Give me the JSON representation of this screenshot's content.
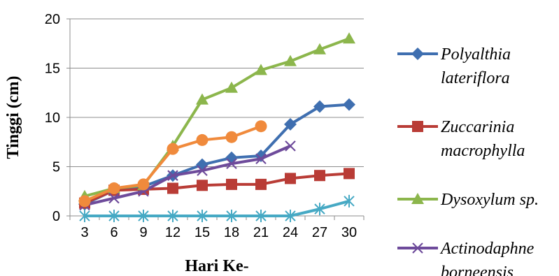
{
  "chart_data": {
    "type": "line",
    "title": "",
    "xlabel": "Hari Ke-",
    "ylabel": "Tinggi (cm)",
    "categories": [
      3,
      6,
      9,
      12,
      15,
      18,
      21,
      24,
      27,
      30
    ],
    "yticks": [
      0,
      5,
      10,
      15,
      20
    ],
    "ylim": [
      0,
      20
    ],
    "grid": "horizontal",
    "legend_position": "right",
    "series": [
      {
        "name_lines": [
          "Polyalthia",
          "lateriflora"
        ],
        "color": "#3f6fb0",
        "marker": "diamond",
        "values": [
          1.2,
          2.6,
          3.0,
          4.1,
          5.2,
          5.9,
          6.1,
          9.3,
          11.1,
          11.3
        ]
      },
      {
        "name_lines": [
          "Zuccarinia",
          "macrophylla"
        ],
        "color": "#b93c36",
        "marker": "square",
        "values": [
          1.3,
          2.6,
          2.7,
          2.8,
          3.1,
          3.2,
          3.2,
          3.8,
          4.1,
          4.3
        ]
      },
      {
        "name_lines": [
          "Dysoxylum sp."
        ],
        "color": "#8cb64c",
        "marker": "triangle",
        "values": [
          2.0,
          2.8,
          3.1,
          7.1,
          11.8,
          13.0,
          14.8,
          15.7,
          16.9,
          18.0
        ]
      },
      {
        "name_lines": [
          "Actinodaphne",
          "borneensis"
        ],
        "color": "#6e4b9b",
        "marker": "x",
        "values": [
          1.1,
          1.8,
          2.5,
          4.1,
          4.6,
          5.3,
          5.8,
          7.1,
          null,
          null
        ]
      },
      {
        "name_lines": [],
        "color": "#46a9c4",
        "marker": "star",
        "values": [
          0,
          0,
          0,
          0,
          0,
          0,
          0,
          0,
          0.7,
          1.5
        ]
      },
      {
        "name_lines": [],
        "color": "#f08a3c",
        "marker": "circle",
        "values": [
          1.5,
          2.8,
          3.2,
          6.8,
          7.7,
          8.0,
          9.1,
          null,
          null,
          null
        ]
      }
    ]
  }
}
